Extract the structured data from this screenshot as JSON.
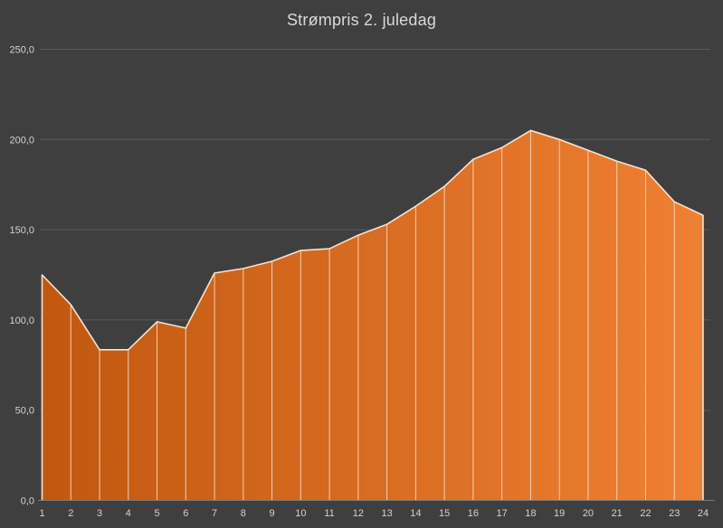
{
  "title": "Strømpris 2. juledag",
  "colors": {
    "background": "#3F3F3F",
    "title_text": "#D9D9D9",
    "axis_text": "#D2D2D2",
    "gridline": "#5A5A5A",
    "axis_line": "#7A7A7A",
    "area_gradient_left": "#C1580F",
    "area_gradient_right": "#EF8033",
    "area_outline": "#F5E3D0",
    "drop_line": "#F2DCC8"
  },
  "chart_data": {
    "type": "area",
    "title": "Strømpris 2. juledag",
    "xlabel": "",
    "ylabel": "",
    "categories": [
      1,
      2,
      3,
      4,
      5,
      6,
      7,
      8,
      9,
      10,
      11,
      12,
      13,
      14,
      15,
      16,
      17,
      18,
      19,
      20,
      21,
      22,
      23,
      24
    ],
    "values": [
      125,
      108.5,
      83.5,
      83.5,
      99,
      95.5,
      126,
      128.5,
      132.5,
      138.5,
      139.5,
      147,
      153,
      163,
      174,
      189,
      195.5,
      205,
      200,
      194,
      188,
      183,
      165.5,
      158
    ],
    "ylim": [
      0,
      250
    ],
    "ytick_interval": 50,
    "ytick_labels": [
      "0,0",
      "50,0",
      "100,0",
      "150,0",
      "200,0",
      "250,0"
    ],
    "grid": true,
    "legend_position": "none",
    "drop_lines": true,
    "decimal_separator": ","
  }
}
